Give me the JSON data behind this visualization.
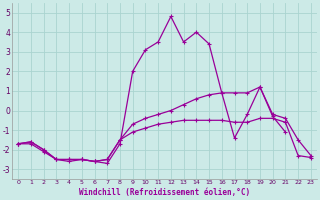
{
  "xlabel": "Windchill (Refroidissement éolien,°C)",
  "bg_color": "#cceae7",
  "grid_color": "#aad4d0",
  "line_color": "#990099",
  "x_hours": [
    0,
    1,
    2,
    3,
    4,
    5,
    6,
    7,
    8,
    9,
    10,
    11,
    12,
    13,
    14,
    15,
    16,
    17,
    18,
    19,
    20,
    21,
    22,
    23
  ],
  "line1_y": [
    -1.7,
    -1.7,
    -2.1,
    -2.5,
    -2.6,
    -2.5,
    -2.6,
    -2.7,
    -1.7,
    2.0,
    3.1,
    3.5,
    4.8,
    3.5,
    4.0,
    3.4,
    0.9,
    -1.4,
    -0.2,
    1.2,
    -0.3,
    -1.1,
    null,
    null
  ],
  "line2_y": [
    -1.7,
    -1.6,
    -2.0,
    -2.5,
    -2.5,
    -2.5,
    -2.6,
    -2.5,
    -1.5,
    -0.7,
    -0.4,
    -0.2,
    0.0,
    0.3,
    0.6,
    0.8,
    0.9,
    0.9,
    0.9,
    1.2,
    -0.2,
    -0.4,
    -1.5,
    -2.3
  ],
  "line3_y": [
    -1.7,
    -1.6,
    -2.0,
    -2.5,
    -2.5,
    -2.5,
    -2.6,
    -2.5,
    -1.5,
    -1.1,
    -0.9,
    -0.7,
    -0.6,
    -0.5,
    -0.5,
    -0.5,
    -0.5,
    -0.6,
    -0.6,
    -0.4,
    -0.4,
    -0.6,
    -2.3,
    -2.4
  ],
  "ylim": [
    -3.5,
    5.5
  ],
  "yticks": [
    -3,
    -2,
    -1,
    0,
    1,
    2,
    3,
    4,
    5
  ],
  "xlim": [
    -0.5,
    23.5
  ]
}
